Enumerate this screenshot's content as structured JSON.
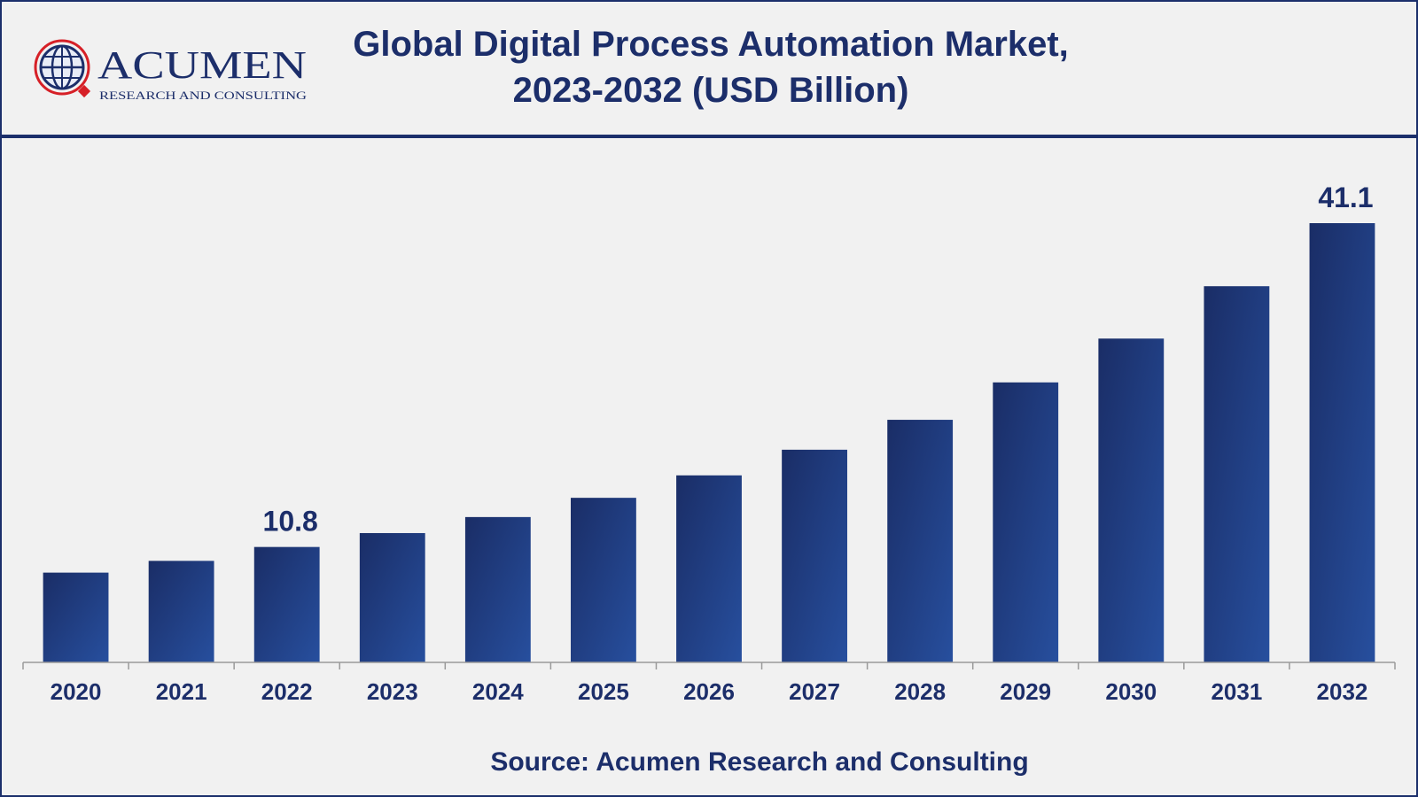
{
  "header": {
    "title_line1": "Global Digital Process Automation Market,",
    "title_line2": "2023-2032 (USD Billion)"
  },
  "logo": {
    "name": "ACUMEN",
    "tagline": "RESEARCH AND CONSULTING"
  },
  "footer": {
    "source": "Source: Acumen Research and Consulting"
  },
  "colors": {
    "bar_dark": "#1a2d66",
    "bar_light": "#274f9e",
    "text": "#1c2e6a",
    "logo_red": "#d62027"
  },
  "chart_data": {
    "type": "bar",
    "categories": [
      "2020",
      "2021",
      "2022",
      "2023",
      "2024",
      "2025",
      "2026",
      "2027",
      "2028",
      "2029",
      "2030",
      "2031",
      "2032"
    ],
    "values": [
      8.4,
      9.5,
      10.8,
      12.1,
      13.6,
      15.4,
      17.5,
      19.9,
      22.7,
      26.2,
      30.3,
      35.2,
      41.1
    ],
    "data_labels": [
      {
        "category": "2022",
        "text": "10.8"
      },
      {
        "category": "2032",
        "text": "41.1"
      }
    ],
    "ylim": [
      0,
      41.1
    ],
    "grid": false,
    "legend": "none"
  }
}
